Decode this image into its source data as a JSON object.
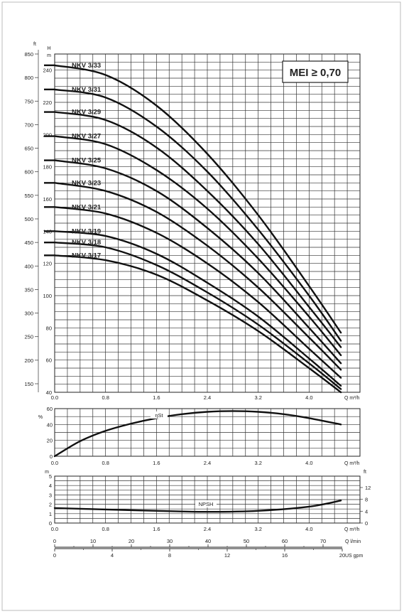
{
  "badge": "MEI ≥ 0,70",
  "chart_data": [
    {
      "type": "line",
      "name": "head",
      "x_unit": "Q m³/h",
      "y_unit_left": "H m",
      "y_unit_outer": "ft",
      "xlim": [
        0,
        4.8
      ],
      "ylim": [
        40,
        250
      ],
      "x_ticks": [
        "0.0",
        "0.8",
        "1.6",
        "2.4",
        "3.2",
        "4.0"
      ],
      "y_ticks_m": [
        "40",
        "60",
        "80",
        "100",
        "120",
        "140",
        "160",
        "180",
        "200",
        "220",
        "240"
      ],
      "y_ticks_ft": [
        "150",
        "200",
        "250",
        "300",
        "350",
        "400",
        "450",
        "500",
        "550",
        "600",
        "650",
        "700",
        "750",
        "800",
        "850"
      ],
      "series": [
        {
          "name": "NKV 3/33",
          "x": [
            0,
            0.8,
            1.6,
            2.4,
            3.2,
            4.0,
            4.5
          ],
          "y": [
            243,
            237,
            218,
            188,
            150,
            106,
            77
          ]
        },
        {
          "name": "NKV 3/31",
          "x": [
            0,
            0.8,
            1.6,
            2.4,
            3.2,
            4.0,
            4.5
          ],
          "y": [
            228,
            223,
            205,
            177,
            141,
            100,
            72
          ]
        },
        {
          "name": "NKV 3/29",
          "x": [
            0,
            0.8,
            1.6,
            2.4,
            3.2,
            4.0,
            4.5
          ],
          "y": [
            214,
            209,
            192,
            165,
            132,
            93,
            68
          ]
        },
        {
          "name": "NKV 3/27",
          "x": [
            0,
            0.8,
            1.6,
            2.4,
            3.2,
            4.0,
            4.5
          ],
          "y": [
            199,
            194,
            178,
            154,
            123,
            87,
            63
          ]
        },
        {
          "name": "NKV 3/25",
          "x": [
            0,
            0.8,
            1.6,
            2.4,
            3.2,
            4.0,
            4.5
          ],
          "y": [
            184,
            179,
            165,
            142,
            114,
            80,
            58
          ]
        },
        {
          "name": "NKV 3/23",
          "x": [
            0,
            0.8,
            1.6,
            2.4,
            3.2,
            4.0,
            4.5
          ],
          "y": [
            170,
            165,
            152,
            131,
            105,
            74,
            54
          ]
        },
        {
          "name": "NKV 3/21",
          "x": [
            0,
            0.8,
            1.6,
            2.4,
            3.2,
            4.0,
            4.5
          ],
          "y": [
            155,
            151,
            139,
            120,
            96,
            67,
            49
          ]
        },
        {
          "name": "NKV 3/19",
          "x": [
            0,
            0.8,
            1.6,
            2.4,
            3.2,
            4.0,
            4.5
          ],
          "y": [
            140,
            137,
            126,
            108,
            87,
            61,
            44
          ]
        },
        {
          "name": "NKV 3/18",
          "x": [
            0,
            0.8,
            1.6,
            2.4,
            3.2,
            4.0,
            4.5
          ],
          "y": [
            133,
            130,
            119,
            102,
            82,
            58,
            42
          ]
        },
        {
          "name": "NKV 3/17",
          "x": [
            0,
            0.8,
            1.6,
            2.4,
            3.2,
            4.0,
            4.5
          ],
          "y": [
            125,
            122,
            113,
            97,
            78,
            55,
            40
          ]
        }
      ]
    },
    {
      "type": "line",
      "name": "efficiency",
      "x_unit": "Q m³/h",
      "y_unit": "%",
      "xlim": [
        0,
        4.8
      ],
      "ylim": [
        0,
        60
      ],
      "x_ticks": [
        "0.0",
        "0.8",
        "1.6",
        "2.4",
        "3.2",
        "4.0"
      ],
      "y_ticks": [
        "0",
        "20",
        "40",
        "60"
      ],
      "series": [
        {
          "name": "ηSt",
          "x": [
            0,
            0.4,
            0.8,
            1.2,
            1.6,
            2.0,
            2.4,
            2.8,
            3.2,
            3.6,
            4.0,
            4.5
          ],
          "y": [
            0,
            19,
            32,
            41,
            48,
            53,
            56,
            57,
            56,
            53,
            48,
            40
          ]
        }
      ]
    },
    {
      "type": "line",
      "name": "npsh",
      "x_unit": "Q m³/h",
      "y_unit_left": "m",
      "y_unit_right": "ft",
      "xlim": [
        0,
        4.8
      ],
      "ylim": [
        0,
        5
      ],
      "x_ticks": [
        "0.0",
        "0.8",
        "1.6",
        "2.4",
        "3.2",
        "4.0"
      ],
      "y_ticks_m": [
        "0",
        "1",
        "2",
        "3",
        "4",
        "5"
      ],
      "y_ticks_ft": [
        "0",
        "4",
        "8",
        "12"
      ],
      "series": [
        {
          "name": "NPSH",
          "x": [
            0,
            0.8,
            1.6,
            2.4,
            3.2,
            4.0,
            4.5
          ],
          "y": [
            1.6,
            1.45,
            1.3,
            1.2,
            1.3,
            1.75,
            2.4
          ]
        }
      ]
    }
  ],
  "flow_scales": [
    {
      "unit": "Q l/min",
      "ticks": [
        "0",
        "10",
        "20",
        "30",
        "40",
        "50",
        "60",
        "70"
      ]
    },
    {
      "unit": "US gpm",
      "ticks": [
        "0",
        "4",
        "8",
        "12",
        "16",
        "20"
      ]
    }
  ]
}
